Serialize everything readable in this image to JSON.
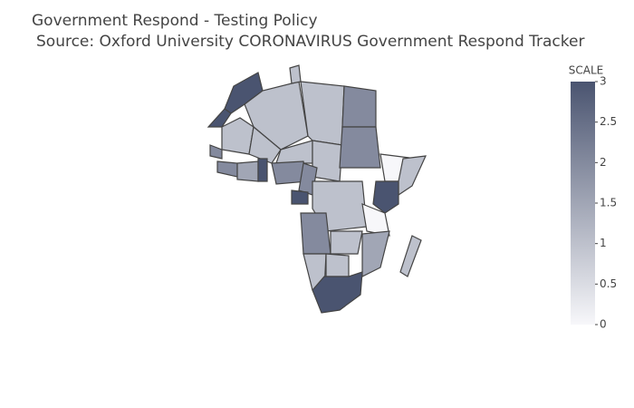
{
  "chart_data": {
    "type": "choropleth",
    "title": "Government Respond - Testing Policy",
    "subtitle": "Source:  Oxford University CORONAVIRUS Government Respond Tracker",
    "values": [
      3,
      3,
      1,
      1,
      1,
      2,
      1,
      1,
      1,
      1,
      2,
      2,
      2,
      1.5,
      3,
      2,
      2,
      0,
      1,
      3,
      3,
      1,
      0,
      2,
      1,
      1.5,
      1,
      1,
      1,
      3
    ],
    "colorscale": [
      "#f7f7fa",
      "#4a5470"
    ],
    "colorbar_title": "SCALE",
    "colorbar_lim": [
      0,
      3
    ],
    "colorbar_ticks": [
      0,
      0.5,
      1,
      1.5,
      2,
      2.5,
      3
    ]
  }
}
